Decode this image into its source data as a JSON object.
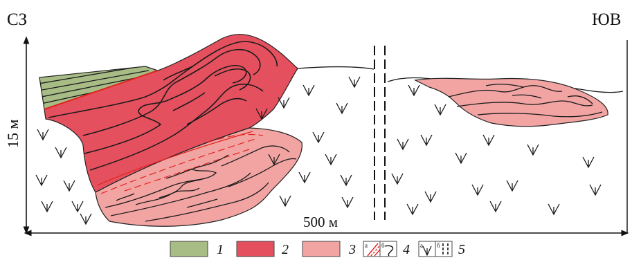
{
  "directions": {
    "left": "СЗ",
    "right": "ЮВ"
  },
  "scale": {
    "vertical": "15 м",
    "horizontal": "500 м"
  },
  "colors": {
    "unit1": "#a8bc86",
    "unit2": "#e5505f",
    "unit3": "#f2a4a3",
    "fault": "#e0241f",
    "line": "#1a1a1a"
  },
  "legend": [
    {
      "label": "1",
      "type": "swatch",
      "color": "#a8bc86"
    },
    {
      "label": "2",
      "type": "swatch",
      "color": "#e5505f"
    },
    {
      "label": "3",
      "type": "swatch",
      "color": "#f2a4a3"
    },
    {
      "label": "4",
      "type": "symbols",
      "subs": [
        "а",
        "б"
      ],
      "icons": [
        "red-hatch-icon",
        "fold-hook-icon"
      ]
    },
    {
      "label": "5",
      "type": "symbols",
      "subs": [
        "а",
        "б"
      ],
      "icons": [
        "volcanic-v-icon",
        "dashed-fault-icon"
      ]
    }
  ]
}
